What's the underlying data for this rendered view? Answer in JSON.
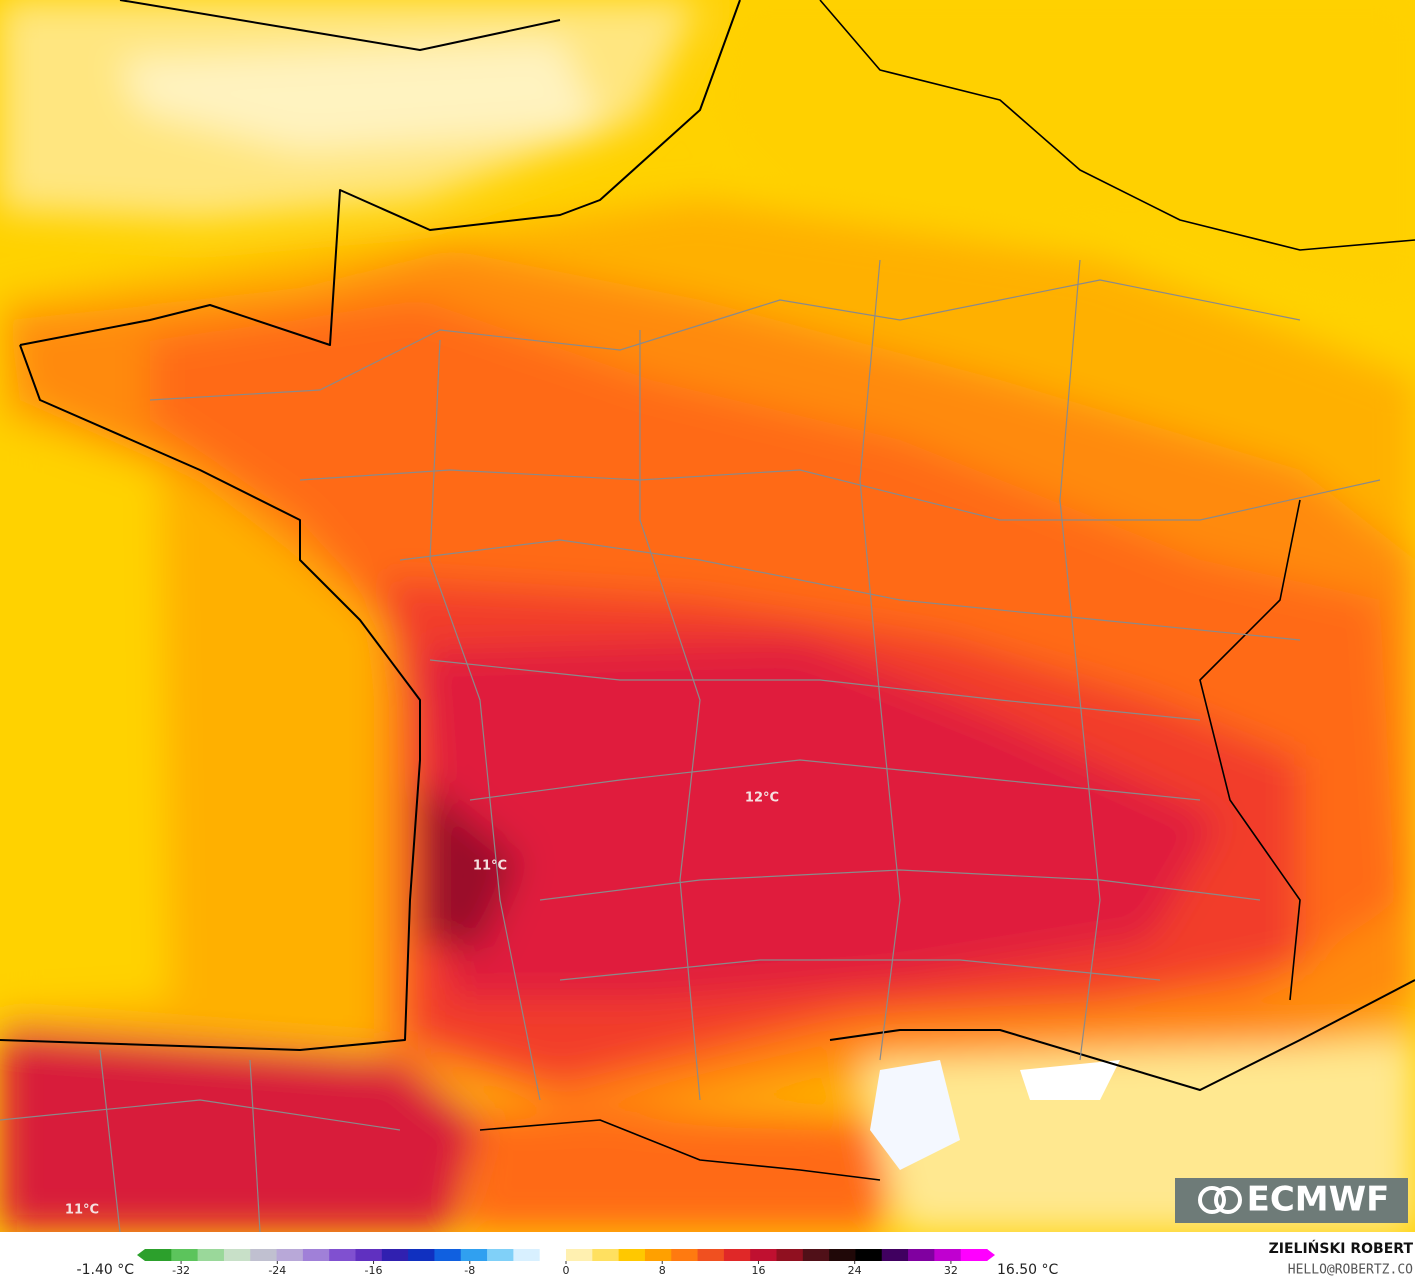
{
  "map": {
    "labels": [
      {
        "text": "11°C"
      },
      {
        "text": "12°C"
      },
      {
        "text": "11°C"
      }
    ],
    "logo": "ECMWF",
    "colorbar": {
      "min_label": "-1.40 °C",
      "max_label": "16.50 °C",
      "lim": [
        -35,
        35
      ],
      "ticks": [
        -32,
        -24,
        -16,
        -8,
        0,
        8,
        16,
        24,
        32
      ],
      "colors": [
        "#2ca02c",
        "#5cc45c",
        "#9ad89a",
        "#c8e0c8",
        "#c0c0d0",
        "#b8a8d8",
        "#a080d8",
        "#8050d0",
        "#6030c0",
        "#3020b0",
        "#1030c0",
        "#1060e0",
        "#30a0f0",
        "#80d0f8",
        "#d8f0ff",
        "#ffffff",
        "#fff0b0",
        "#ffe060",
        "#ffc800",
        "#ffa000",
        "#ff7a10",
        "#f05020",
        "#e02828",
        "#c01030",
        "#901020",
        "#501018",
        "#200808",
        "#000000",
        "#400060",
        "#8000a0",
        "#c000d0",
        "#ff00ff"
      ]
    },
    "credit": {
      "name": "ZIELIŃSKI ROBERT",
      "contact": "HELLO@ROBERTZ.CO"
    }
  }
}
